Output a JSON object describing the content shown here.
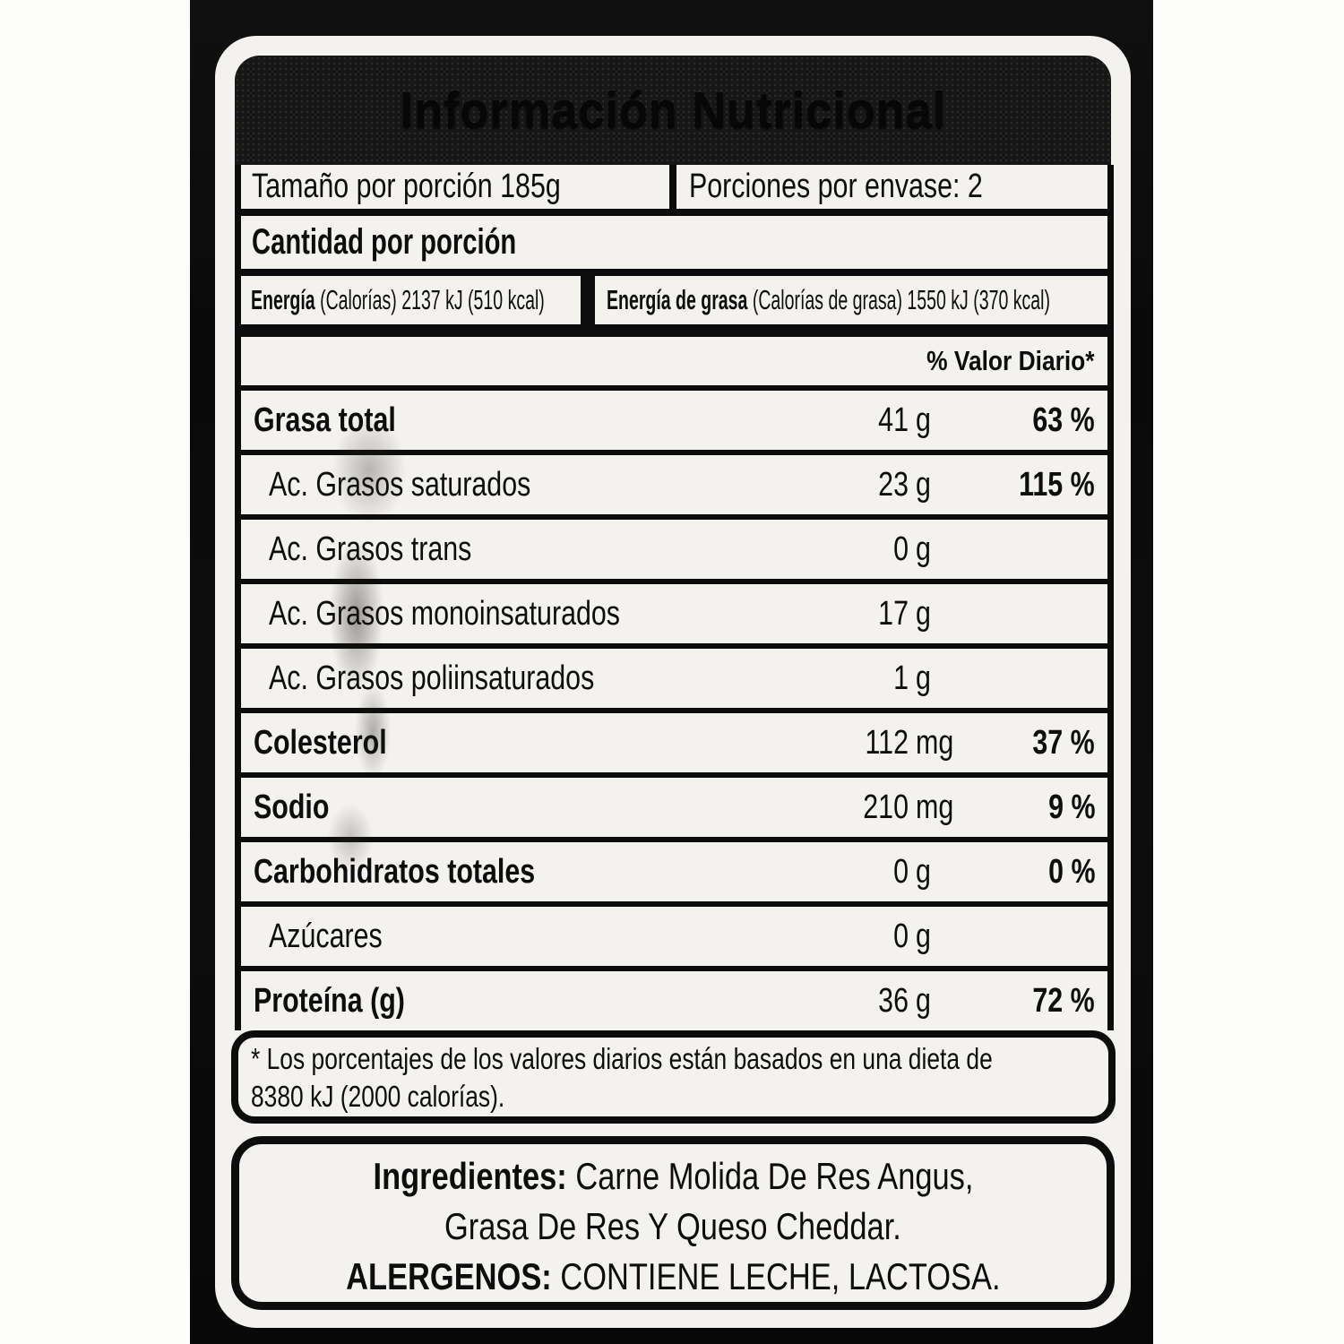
{
  "label": {
    "title": "Información Nutricional",
    "serving": {
      "size": "Tamaño por porción 185g",
      "per_package": "Porciones por envase: 2"
    },
    "amount_header": "Cantidad por porción",
    "energy": {
      "bold": "Energía",
      "rest": " (Calorías) 2137 kJ (510 kcal)"
    },
    "energy_fat": {
      "bold": "Energía de grasa",
      "rest": " (Calorías de grasa) 1550 kJ (370 kcal)"
    },
    "dv_header": "% Valor Diario*",
    "rows": [
      {
        "label": "Grasa total",
        "amount": "41",
        "unit": "g",
        "dv": "63 %"
      },
      {
        "label": "Ac. Grasos saturados",
        "amount": "23",
        "unit": "g",
        "dv": "115 %"
      },
      {
        "label": "Ac. Grasos trans",
        "amount": "0",
        "unit": "g",
        "dv": ""
      },
      {
        "label": "Ac. Grasos monoinsaturados",
        "amount": "17",
        "unit": "g",
        "dv": ""
      },
      {
        "label": "Ac. Grasos poliinsaturados",
        "amount": "1",
        "unit": "g",
        "dv": ""
      },
      {
        "label": "Colesterol",
        "amount": "112",
        "unit": "mg",
        "dv": "37 %"
      },
      {
        "label": "Sodio",
        "amount": "210",
        "unit": "mg",
        "dv": "9 %"
      },
      {
        "label": "Carbohidratos totales",
        "amount": "0",
        "unit": "g",
        "dv": "0 %"
      },
      {
        "label": "Azúcares",
        "amount": "0",
        "unit": "g",
        "dv": ""
      },
      {
        "label": "Proteína (g)",
        "amount": "36",
        "unit": "g",
        "dv": "72 %"
      }
    ],
    "footnote": {
      "line1": "* Los porcentajes de los valores diarios están basados en una dieta de",
      "line2": "8380 kJ (2000 calorías)."
    },
    "ingredients": {
      "title": "Ingredientes:",
      "line1_rest": " Carne Molida De Res Angus,",
      "line2": "Grasa De Res Y Queso Cheddar.",
      "allergens_title": "ALERGENOS:",
      "allergens_rest": " CONTIENE LECHE, LACTOSA."
    },
    "colors": {
      "ink": "#0d0d0d",
      "paper": "#f4f2ee",
      "header_bg": "#171717"
    }
  }
}
